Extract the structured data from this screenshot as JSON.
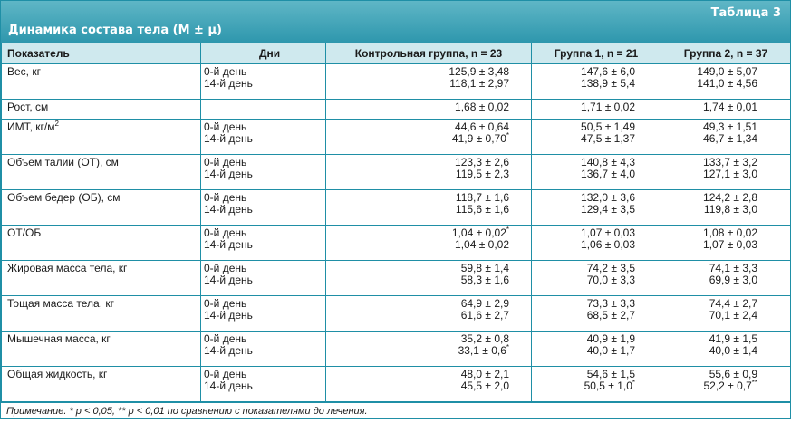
{
  "header": {
    "table_number": "Таблица 3",
    "caption": "Динамика состава тела (М ± µ)"
  },
  "columns": [
    "Показатель",
    "Дни",
    "Контрольная группа, n = 23",
    "Группа 1, n = 21",
    "Группа 2, n = 37"
  ],
  "rows": [
    {
      "indicator": "Вес, кг",
      "days": [
        "0-й день",
        "14-й день"
      ],
      "control": [
        "125,9 ± 3,48",
        "118,1 ± 2,97"
      ],
      "g1": [
        "147,6 ± 6,0",
        "138,9 ± 5,4"
      ],
      "g2": [
        "149,0 ± 5,07",
        "141,0 ± 4,56"
      ]
    },
    {
      "indicator": "Рост, см",
      "days": [
        ""
      ],
      "control": [
        "1,68 ± 0,02"
      ],
      "g1": [
        "1,71 ± 0,02"
      ],
      "g2": [
        "1,74 ± 0,01"
      ]
    },
    {
      "indicator": "ИМТ, кг/м",
      "indicator_sup": "2",
      "days": [
        "0-й день",
        "14-й день"
      ],
      "control": [
        "44,6 ± 0,64",
        "41,9 ± 0,70"
      ],
      "control_sup": [
        "",
        "*"
      ],
      "g1": [
        "50,5 ± 1,49",
        "47,5 ± 1,37"
      ],
      "g2": [
        "49,3 ± 1,51",
        "46,7 ± 1,34"
      ]
    },
    {
      "indicator": "Объем талии (ОТ), см",
      "days": [
        "0-й день",
        "14-й день"
      ],
      "control": [
        "123,3 ± 2,6",
        "119,5 ± 2,3"
      ],
      "g1": [
        "140,8 ± 4,3",
        "136,7 ± 4,0"
      ],
      "g2": [
        "133,7 ± 3,2",
        "127,1 ± 3,0"
      ]
    },
    {
      "indicator": "Объем бедер (ОБ), см",
      "days": [
        "0-й день",
        "14-й день"
      ],
      "control": [
        "118,7 ± 1,6",
        "115,6 ± 1,6"
      ],
      "g1": [
        "132,0 ± 3,6",
        "129,4 ± 3,5"
      ],
      "g2": [
        "124,2 ± 2,8",
        "119,8 ± 3,0"
      ]
    },
    {
      "indicator": "ОТ/ОБ",
      "days": [
        "0-й день",
        "14-й день"
      ],
      "control": [
        "1,04 ± 0,02",
        "1,04 ± 0,02"
      ],
      "control_sup": [
        "*",
        ""
      ],
      "g1": [
        "1,07 ± 0,03",
        "1,06 ± 0,03"
      ],
      "g2": [
        "1,08 ± 0,02",
        "1,07 ± 0,03"
      ]
    },
    {
      "indicator": "Жировая масса тела, кг",
      "days": [
        "0-й день",
        "14-й день"
      ],
      "control": [
        "59,8 ± 1,4",
        "58,3 ± 1,6"
      ],
      "g1": [
        "74,2 ± 3,5",
        "70,0 ± 3,3"
      ],
      "g2": [
        "74,1 ± 3,3",
        "69,9 ± 3,0"
      ]
    },
    {
      "indicator": "Тощая масса тела, кг",
      "days": [
        "0-й день",
        "14-й день"
      ],
      "control": [
        "64,9 ± 2,9",
        "61,6 ± 2,7"
      ],
      "g1": [
        "73,3 ± 3,3",
        "68,5 ± 2,7"
      ],
      "g2": [
        "74,4 ± 2,7",
        "70,1 ± 2,4"
      ]
    },
    {
      "indicator": "Мышечная масса, кг",
      "days": [
        "0-й день",
        "14-й день"
      ],
      "control": [
        "35,2 ± 0,8",
        "33,1 ± 0,6"
      ],
      "control_sup": [
        "",
        "*"
      ],
      "g1": [
        "40,9 ± 1,9",
        "40,0 ± 1,7"
      ],
      "g2": [
        "41,9 ± 1,5",
        "40,0 ± 1,4"
      ]
    },
    {
      "indicator": "Общая жидкость, кг",
      "days": [
        "0-й день",
        "14-й день"
      ],
      "control": [
        "48,0 ± 2,1",
        "45,5 ± 2,0"
      ],
      "g1": [
        "54,6 ± 1,5",
        "50,5 ± 1,0"
      ],
      "g1_sup": [
        "",
        "*"
      ],
      "g2": [
        "55,6 ± 0,9",
        "52,2 ± 0,7"
      ],
      "g2_sup": [
        "",
        "**"
      ]
    }
  ],
  "note": "Примечание. * p < 0,05, ** p < 0,01 по сравнению с показателями до лечения."
}
